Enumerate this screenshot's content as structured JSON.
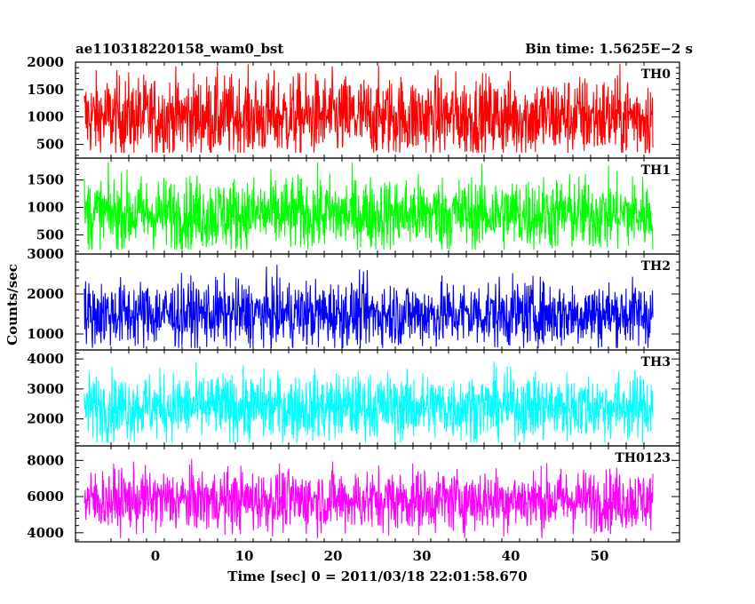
{
  "header": {
    "obs_id": "ae110318220158_wam0_bst",
    "bin_time": "Bin time: 1.5625E−2 s"
  },
  "chart_data": {
    "type": "line",
    "ylabel": "Counts/sec",
    "xlabel": "Time [sec] 0 = 2011/03/18 22:01:58.670",
    "xlim": [
      -9,
      59
    ],
    "x_range": [
      -8,
      56
    ],
    "xticks": [
      0,
      10,
      20,
      30,
      40,
      50
    ],
    "grid": false,
    "panels": [
      {
        "name": "TH0",
        "color": "#ff0000",
        "ylim": [
          250,
          2000
        ],
        "yticks": [
          500,
          1000,
          1500,
          2000
        ],
        "mean": 1000,
        "spread": 380,
        "min": 350,
        "max": 2000
      },
      {
        "name": "TH1",
        "color": "#00ff00",
        "ylim": [
          150,
          1900
        ],
        "yticks": [
          500,
          1000,
          1500
        ],
        "mean": 880,
        "spread": 340,
        "min": 230,
        "max": 1820
      },
      {
        "name": "TH2",
        "color": "#0000ff",
        "ylim": [
          600,
          3000
        ],
        "yticks": [
          1000,
          2000,
          3000
        ],
        "mean": 1500,
        "spread": 420,
        "min": 650,
        "max": 2950
      },
      {
        "name": "TH3",
        "color": "#00ffff",
        "ylim": [
          1100,
          4300
        ],
        "yticks": [
          2000,
          3000,
          4000
        ],
        "mean": 2400,
        "spread": 560,
        "min": 1200,
        "max": 4250
      },
      {
        "name": "TH0123",
        "color": "#ff00ff",
        "ylim": [
          3500,
          8800
        ],
        "yticks": [
          4000,
          6000,
          8000
        ],
        "mean": 5800,
        "spread": 860,
        "min": 3700,
        "max": 8700
      }
    ]
  }
}
